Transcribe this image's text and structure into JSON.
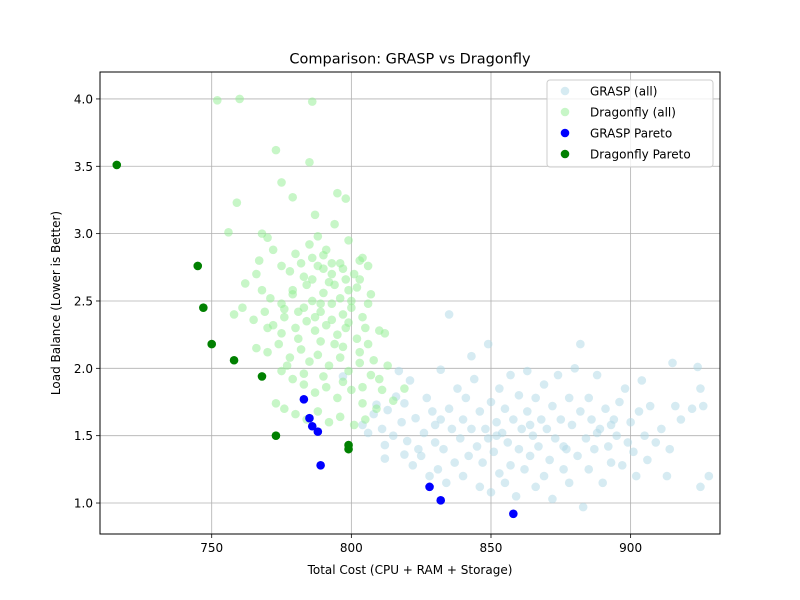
{
  "chart_data": {
    "type": "scatter",
    "title": "Comparison: GRASP vs Dragonfly",
    "xlabel": "Total Cost (CPU + RAM + Storage)",
    "ylabel": "Load Balance (Lower is Better)",
    "xlim": [
      710,
      932
    ],
    "ylim": [
      0.77,
      4.2
    ],
    "xticks": [
      750,
      800,
      850,
      900
    ],
    "yticks": [
      1.0,
      1.5,
      2.0,
      2.5,
      3.0,
      3.5,
      4.0
    ],
    "ytick_labels": [
      "1.0",
      "1.5",
      "2.0",
      "2.5",
      "3.0",
      "3.5",
      "4.0"
    ],
    "grid": true,
    "legend_position": "top-right",
    "series": [
      {
        "name": "GRASP (all)",
        "color": "#add8e6",
        "alpha": 0.5,
        "points": [
          [
            797,
            1.94
          ],
          [
            804,
            1.58
          ],
          [
            806,
            1.52
          ],
          [
            808,
            1.66
          ],
          [
            809,
            1.73
          ],
          [
            811,
            1.55
          ],
          [
            812,
            1.43
          ],
          [
            812,
            1.33
          ],
          [
            813,
            1.69
          ],
          [
            815,
            1.5
          ],
          [
            816,
            1.79
          ],
          [
            817,
            1.98
          ],
          [
            818,
            1.6
          ],
          [
            819,
            1.36
          ],
          [
            819,
            1.74
          ],
          [
            820,
            1.46
          ],
          [
            821,
            1.91
          ],
          [
            822,
            1.28
          ],
          [
            823,
            1.63
          ],
          [
            824,
            1.4
          ],
          [
            825,
            1.35
          ],
          [
            826,
            1.52
          ],
          [
            827,
            1.78
          ],
          [
            828,
            1.2
          ],
          [
            829,
            1.68
          ],
          [
            830,
            1.45
          ],
          [
            830,
            1.58
          ],
          [
            831,
            1.25
          ],
          [
            832,
            1.99
          ],
          [
            832,
            1.62
          ],
          [
            833,
            1.4
          ],
          [
            834,
            1.15
          ],
          [
            835,
            2.4
          ],
          [
            835,
            1.7
          ],
          [
            836,
            1.55
          ],
          [
            837,
            1.3
          ],
          [
            838,
            1.85
          ],
          [
            839,
            1.48
          ],
          [
            840,
            1.2
          ],
          [
            840,
            1.62
          ],
          [
            841,
            1.78
          ],
          [
            842,
            1.35
          ],
          [
            843,
            2.09
          ],
          [
            843,
            1.55
          ],
          [
            844,
            1.92
          ],
          [
            845,
            1.42
          ],
          [
            846,
            1.68
          ],
          [
            846,
            1.12
          ],
          [
            847,
            1.3
          ],
          [
            848,
            1.55
          ],
          [
            849,
            2.18
          ],
          [
            849,
            1.48
          ],
          [
            850,
            1.75
          ],
          [
            850,
            1.08
          ],
          [
            851,
            1.38
          ],
          [
            852,
            1.6
          ],
          [
            853,
            1.22
          ],
          [
            853,
            1.85
          ],
          [
            854,
            1.52
          ],
          [
            855,
            1.15
          ],
          [
            855,
            1.7
          ],
          [
            856,
            1.45
          ],
          [
            857,
            1.95
          ],
          [
            857,
            1.28
          ],
          [
            858,
            1.62
          ],
          [
            859,
            1.05
          ],
          [
            860,
            1.4
          ],
          [
            860,
            1.8
          ],
          [
            861,
            1.55
          ],
          [
            862,
            1.25
          ],
          [
            863,
            1.98
          ],
          [
            863,
            1.68
          ],
          [
            864,
            1.35
          ],
          [
            865,
            1.5
          ],
          [
            866,
            1.12
          ],
          [
            866,
            1.78
          ],
          [
            867,
            1.42
          ],
          [
            868,
            1.62
          ],
          [
            869,
            1.2
          ],
          [
            869,
            1.88
          ],
          [
            870,
            1.55
          ],
          [
            871,
            1.32
          ],
          [
            872,
            1.72
          ],
          [
            872,
            1.03
          ],
          [
            873,
            1.48
          ],
          [
            874,
            1.95
          ],
          [
            875,
            1.62
          ],
          [
            876,
            1.25
          ],
          [
            877,
            1.4
          ],
          [
            878,
            1.78
          ],
          [
            878,
            1.15
          ],
          [
            879,
            1.58
          ],
          [
            880,
            2.0
          ],
          [
            881,
            1.35
          ],
          [
            882,
            2.18
          ],
          [
            882,
            1.68
          ],
          [
            883,
            0.97
          ],
          [
            884,
            1.48
          ],
          [
            885,
            1.78
          ],
          [
            885,
            1.25
          ],
          [
            886,
            1.62
          ],
          [
            887,
            1.4
          ],
          [
            888,
            1.95
          ],
          [
            889,
            1.55
          ],
          [
            890,
            1.15
          ],
          [
            891,
            1.7
          ],
          [
            892,
            1.42
          ],
          [
            893,
            1.3
          ],
          [
            894,
            1.62
          ],
          [
            895,
            1.5
          ],
          [
            896,
            1.75
          ],
          [
            897,
            1.28
          ],
          [
            898,
            1.85
          ],
          [
            899,
            1.45
          ],
          [
            900,
            1.6
          ],
          [
            901,
            1.38
          ],
          [
            902,
            1.2
          ],
          [
            903,
            1.68
          ],
          [
            904,
            1.91
          ],
          [
            905,
            1.5
          ],
          [
            906,
            1.32
          ],
          [
            907,
            1.72
          ],
          [
            909,
            1.45
          ],
          [
            911,
            1.55
          ],
          [
            913,
            1.2
          ],
          [
            914,
            1.4
          ],
          [
            915,
            2.04
          ],
          [
            916,
            1.72
          ],
          [
            918,
            1.62
          ],
          [
            922,
            1.7
          ],
          [
            924,
            2.01
          ],
          [
            925,
            1.85
          ],
          [
            925,
            1.12
          ],
          [
            926,
            1.72
          ],
          [
            928,
            1.2
          ],
          [
            852,
            1.5
          ],
          [
            864,
            1.58
          ],
          [
            876,
            1.42
          ],
          [
            888,
            1.52
          ],
          [
            893,
            1.58
          ]
        ]
      },
      {
        "name": "Dragonfly (all)",
        "color": "#90ee90",
        "alpha": 0.5,
        "points": [
          [
            752,
            3.99
          ],
          [
            760,
            4.0
          ],
          [
            786,
            3.98
          ],
          [
            773,
            3.62
          ],
          [
            785,
            3.53
          ],
          [
            775,
            3.38
          ],
          [
            795,
            3.3
          ],
          [
            798,
            3.26
          ],
          [
            779,
            3.27
          ],
          [
            759,
            3.23
          ],
          [
            787,
            3.14
          ],
          [
            794,
            3.07
          ],
          [
            756,
            3.01
          ],
          [
            768,
            3.0
          ],
          [
            788,
            2.98
          ],
          [
            799,
            2.95
          ],
          [
            804,
            2.82
          ],
          [
            770,
            2.97
          ],
          [
            791,
            2.88
          ],
          [
            796,
            2.78
          ],
          [
            801,
            2.7
          ],
          [
            780,
            2.85
          ],
          [
            786,
            2.82
          ],
          [
            767,
            2.8
          ],
          [
            775,
            2.76
          ],
          [
            778,
            2.72
          ],
          [
            783,
            2.68
          ],
          [
            790,
            2.74
          ],
          [
            794,
            2.62
          ],
          [
            799,
            2.58
          ],
          [
            803,
            2.66
          ],
          [
            762,
            2.63
          ],
          [
            768,
            2.58
          ],
          [
            771,
            2.52
          ],
          [
            775,
            2.48
          ],
          [
            779,
            2.55
          ],
          [
            783,
            2.45
          ],
          [
            786,
            2.5
          ],
          [
            789,
            2.42
          ],
          [
            793,
            2.48
          ],
          [
            797,
            2.4
          ],
          [
            800,
            2.45
          ],
          [
            804,
            2.38
          ],
          [
            758,
            2.4
          ],
          [
            761,
            2.45
          ],
          [
            765,
            2.36
          ],
          [
            769,
            2.42
          ],
          [
            772,
            2.32
          ],
          [
            776,
            2.38
          ],
          [
            780,
            2.3
          ],
          [
            784,
            2.35
          ],
          [
            787,
            2.28
          ],
          [
            791,
            2.32
          ],
          [
            795,
            2.25
          ],
          [
            798,
            2.3
          ],
          [
            802,
            2.22
          ],
          [
            806,
            2.18
          ],
          [
            810,
            2.28
          ],
          [
            812,
            2.26
          ],
          [
            766,
            2.15
          ],
          [
            770,
            2.12
          ],
          [
            774,
            2.18
          ],
          [
            778,
            2.08
          ],
          [
            782,
            2.14
          ],
          [
            785,
            2.05
          ],
          [
            788,
            2.1
          ],
          [
            792,
            2.02
          ],
          [
            796,
            2.08
          ],
          [
            799,
            1.98
          ],
          [
            803,
            2.04
          ],
          [
            807,
            1.95
          ],
          [
            810,
            1.92
          ],
          [
            813,
            2.02
          ],
          [
            775,
            1.98
          ],
          [
            779,
            1.92
          ],
          [
            783,
            1.88
          ],
          [
            787,
            1.82
          ],
          [
            791,
            1.86
          ],
          [
            795,
            1.78
          ],
          [
            800,
            1.84
          ],
          [
            804,
            1.74
          ],
          [
            809,
            1.7
          ],
          [
            815,
            1.76
          ],
          [
            819,
            1.85
          ],
          [
            773,
            1.74
          ],
          [
            776,
            1.7
          ],
          [
            780,
            1.66
          ],
          [
            784,
            1.62
          ],
          [
            788,
            1.68
          ],
          [
            792,
            1.6
          ],
          [
            796,
            1.64
          ],
          [
            801,
            1.58
          ],
          [
            805,
            1.62
          ],
          [
            775,
            2.26
          ],
          [
            781,
            2.22
          ],
          [
            789,
            2.2
          ],
          [
            797,
            2.16
          ],
          [
            803,
            2.12
          ],
          [
            808,
            2.06
          ],
          [
            779,
            2.58
          ],
          [
            784,
            2.62
          ],
          [
            790,
            2.56
          ],
          [
            796,
            2.52
          ],
          [
            802,
            2.6
          ],
          [
            807,
            2.55
          ],
          [
            782,
            2.78
          ],
          [
            788,
            2.76
          ],
          [
            793,
            2.7
          ],
          [
            798,
            2.66
          ],
          [
            803,
            2.8
          ],
          [
            806,
            2.76
          ],
          [
            785,
            2.92
          ],
          [
            790,
            2.84
          ],
          [
            793,
            2.78
          ],
          [
            797,
            2.74
          ],
          [
            781,
            2.42
          ],
          [
            787,
            2.38
          ],
          [
            793,
            2.36
          ],
          [
            799,
            2.34
          ],
          [
            805,
            2.3
          ],
          [
            777,
            2.02
          ],
          [
            783,
            1.96
          ],
          [
            790,
            1.94
          ],
          [
            797,
            1.9
          ],
          [
            804,
            1.86
          ],
          [
            811,
            1.84
          ],
          [
            786,
            2.66
          ],
          [
            792,
            2.64
          ],
          [
            772,
            2.88
          ],
          [
            776,
            2.44
          ],
          [
            800,
            2.5
          ],
          [
            806,
            2.48
          ],
          [
            770,
            2.3
          ],
          [
            766,
            2.7
          ],
          [
            794,
            2.18
          ],
          [
            789,
            2.48
          ]
        ]
      },
      {
        "name": "GRASP Pareto",
        "color": "#0000ff",
        "alpha": 1,
        "points": [
          [
            783,
            1.77
          ],
          [
            785,
            1.63
          ],
          [
            786,
            1.57
          ],
          [
            788,
            1.53
          ],
          [
            789,
            1.28
          ],
          [
            828,
            1.12
          ],
          [
            832,
            1.02
          ],
          [
            858,
            0.92
          ]
        ]
      },
      {
        "name": "Dragonfly Pareto",
        "color": "#008000",
        "alpha": 1,
        "points": [
          [
            716,
            3.51
          ],
          [
            745,
            2.76
          ],
          [
            747,
            2.45
          ],
          [
            750,
            2.18
          ],
          [
            758,
            2.06
          ],
          [
            768,
            1.94
          ],
          [
            773,
            1.5
          ],
          [
            799,
            1.43
          ],
          [
            799,
            1.4
          ]
        ]
      }
    ]
  }
}
